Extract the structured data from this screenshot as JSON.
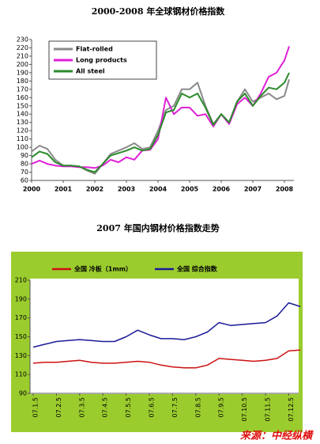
{
  "chart_data": [
    {
      "type": "line",
      "title": "2000-2008 年全球钢材价格指数",
      "x": [
        2000,
        2000.25,
        2000.5,
        2000.75,
        2001,
        2001.25,
        2001.5,
        2001.75,
        2002,
        2002.25,
        2002.5,
        2002.75,
        2003,
        2003.25,
        2003.5,
        2003.75,
        2004,
        2004.25,
        2004.5,
        2004.75,
        2005,
        2005.25,
        2005.5,
        2005.75,
        2006,
        2006.25,
        2006.5,
        2006.75,
        2007,
        2007.25,
        2007.5,
        2007.75,
        2008,
        2008.15
      ],
      "series": [
        {
          "name": "Flat-rolled",
          "color": "#8a8a8a",
          "values": [
            95,
            102,
            98,
            85,
            78,
            78,
            77,
            72,
            68,
            80,
            92,
            96,
            100,
            105,
            98,
            100,
            120,
            145,
            150,
            170,
            170,
            178,
            150,
            128,
            140,
            130,
            155,
            170,
            155,
            160,
            165,
            158,
            162,
            182
          ]
        },
        {
          "name": "Long products",
          "color": "#e020d8",
          "values": [
            80,
            84,
            80,
            78,
            77,
            77,
            76,
            76,
            75,
            78,
            85,
            82,
            88,
            85,
            96,
            97,
            110,
            160,
            140,
            148,
            148,
            138,
            140,
            125,
            140,
            128,
            152,
            160,
            150,
            165,
            185,
            190,
            205,
            222
          ]
        },
        {
          "name": "All steel",
          "color": "#2a8a2a",
          "values": [
            88,
            95,
            92,
            82,
            78,
            78,
            77,
            73,
            70,
            80,
            90,
            93,
            96,
            100,
            96,
            98,
            115,
            142,
            145,
            165,
            160,
            165,
            148,
            127,
            140,
            130,
            155,
            165,
            150,
            162,
            172,
            170,
            178,
            190
          ]
        }
      ],
      "xlim": [
        2000,
        2008.4
      ],
      "xticks": [
        2000,
        2001,
        2002,
        2003,
        2004,
        2005,
        2006,
        2007,
        2008
      ],
      "ylim": [
        60,
        230
      ],
      "yticks": [
        60,
        70,
        80,
        90,
        100,
        110,
        120,
        130,
        140,
        150,
        160,
        170,
        180,
        190,
        200,
        210,
        220,
        230
      ],
      "legend": "upper left"
    },
    {
      "type": "line",
      "title": "2007 年国内钢材价格指数走势",
      "categories": [
        "07.1.5",
        null,
        "07.2.5",
        null,
        "07.3.5",
        null,
        "07.4.5",
        null,
        "07.5.5",
        null,
        "07.6.5",
        null,
        "07.7.5",
        null,
        "07.8.5",
        null,
        "07.9.5",
        null,
        "07.10.5",
        null,
        "07.11.5",
        null,
        "07.12.5",
        null
      ],
      "series": [
        {
          "name": "全国 冷板（1mm）",
          "color": "#cc1111",
          "values": [
            122,
            123,
            123,
            124,
            125,
            123,
            122,
            122,
            123,
            124,
            123,
            120,
            118,
            117,
            117,
            120,
            127,
            126,
            125,
            124,
            125,
            127,
            135,
            136
          ]
        },
        {
          "name": "全国 综合指数",
          "color": "#1a1a99",
          "values": [
            139,
            142,
            145,
            146,
            147,
            146,
            145,
            145,
            150,
            157,
            152,
            148,
            148,
            147,
            150,
            155,
            165,
            162,
            163,
            164,
            165,
            172,
            186,
            182
          ]
        }
      ],
      "ylim": [
        90,
        210
      ],
      "yticks": [
        90,
        110,
        130,
        150,
        170,
        190,
        210
      ],
      "legend": "upper left"
    }
  ],
  "source": "来源：中经纵横"
}
